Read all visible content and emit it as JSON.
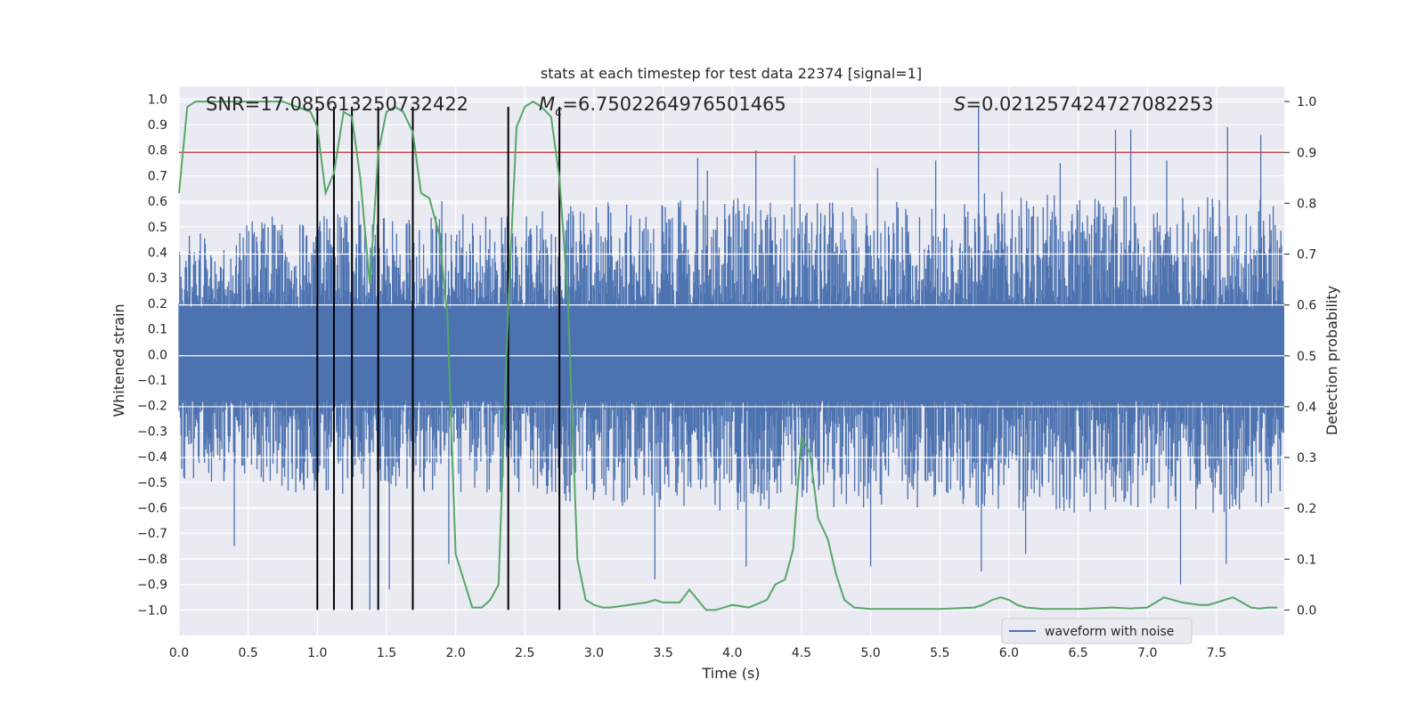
{
  "chart_data": {
    "type": "line",
    "title": "stats at each timestep for test data 22374 [signal=1]",
    "xlabel": "Time (s)",
    "ylabel_left": "Whitened strain",
    "ylabel_right": "Detection probability",
    "xlim": [
      0.0,
      7.99
    ],
    "ylim_left": [
      -1.1,
      1.05
    ],
    "ylim_right": [
      -0.05,
      1.03
    ],
    "x_ticks": [
      "0.0",
      "0.5",
      "1.0",
      "1.5",
      "2.0",
      "2.5",
      "3.0",
      "3.5",
      "4.0",
      "4.5",
      "5.0",
      "5.5",
      "6.0",
      "6.5",
      "7.0",
      "7.5"
    ],
    "y_ticks_left": [
      "1.0",
      "0.9",
      "0.8",
      "0.7",
      "0.6",
      "0.5",
      "0.4",
      "0.3",
      "0.2",
      "0.1",
      "0.0",
      "-0.1",
      "-0.2",
      "-0.3",
      "-0.4",
      "-0.5",
      "-0.6",
      "-0.7",
      "-0.8",
      "-0.9",
      "-1.0"
    ],
    "y_ticks_right": [
      "1.0",
      "0.9",
      "0.8",
      "0.7",
      "0.6",
      "0.5",
      "0.4",
      "0.3",
      "0.2",
      "0.1",
      "0.0"
    ],
    "grid": true,
    "annotations": {
      "snr": "SNR=17.085613250732422",
      "mc_symbol": "M",
      "mc_sub": "c",
      "mc_value": "=6.7502264976501465",
      "s_symbol": "S",
      "s_value": "=0.021257424727082253"
    },
    "threshold_right": 0.9,
    "vertical_lines_x": [
      1.0,
      1.12,
      1.25,
      1.44,
      1.69,
      2.38,
      2.75
    ],
    "vertical_lines_range_left": [
      -1.0,
      0.97
    ],
    "series": [
      {
        "name": "waveform with noise",
        "axis": "left",
        "kind": "noise-strain",
        "color": "#4c72b0",
        "envelope_x": [
          0.0,
          0.5,
          1.0,
          1.5,
          2.0,
          2.5,
          3.0,
          3.5,
          4.0,
          4.5,
          5.0,
          5.5,
          6.0,
          6.5,
          7.0,
          7.5,
          7.99
        ],
        "envelope_upper": [
          0.45,
          0.55,
          0.55,
          0.55,
          0.55,
          0.55,
          0.6,
          0.6,
          0.62,
          0.6,
          0.6,
          0.6,
          0.65,
          0.62,
          0.62,
          0.62,
          0.6
        ],
        "envelope_lower": [
          -0.5,
          -0.52,
          -0.55,
          -0.55,
          -0.55,
          -0.55,
          -0.6,
          -0.6,
          -0.62,
          -0.6,
          -0.6,
          -0.6,
          -0.62,
          -0.62,
          -0.6,
          -0.62,
          -0.6
        ],
        "peaks": [
          {
            "x": 1.3,
            "y": 0.6
          },
          {
            "x": 1.9,
            "y": 0.6
          },
          {
            "x": 3.75,
            "y": 0.77
          },
          {
            "x": 4.17,
            "y": 0.8
          },
          {
            "x": 4.45,
            "y": 0.78
          },
          {
            "x": 5.47,
            "y": 0.76
          },
          {
            "x": 5.78,
            "y": 0.97
          },
          {
            "x": 6.37,
            "y": 0.75
          },
          {
            "x": 6.77,
            "y": 0.88
          },
          {
            "x": 6.88,
            "y": 0.88
          },
          {
            "x": 7.14,
            "y": 0.76
          },
          {
            "x": 7.58,
            "y": 0.89
          },
          {
            "x": 7.82,
            "y": 0.86
          },
          {
            "x": 3.82,
            "y": 0.72
          },
          {
            "x": 5.05,
            "y": 0.73
          }
        ],
        "troughs": [
          {
            "x": 0.4,
            "y": -0.75
          },
          {
            "x": 1.38,
            "y": -1.0
          },
          {
            "x": 1.52,
            "y": -0.92
          },
          {
            "x": 1.95,
            "y": -0.82
          },
          {
            "x": 3.44,
            "y": -0.88
          },
          {
            "x": 4.1,
            "y": -0.83
          },
          {
            "x": 5.0,
            "y": -0.83
          },
          {
            "x": 5.8,
            "y": -0.85
          },
          {
            "x": 7.24,
            "y": -0.9
          },
          {
            "x": 6.12,
            "y": -0.78
          },
          {
            "x": 7.57,
            "y": -0.82
          }
        ]
      },
      {
        "name": "",
        "axis": "right",
        "kind": "line",
        "color": "#55a868",
        "x": [
          0.0,
          0.06,
          0.12,
          0.25,
          0.4,
          0.6,
          0.75,
          0.85,
          0.95,
          1.0,
          1.06,
          1.12,
          1.19,
          1.25,
          1.31,
          1.38,
          1.44,
          1.5,
          1.56,
          1.62,
          1.69,
          1.75,
          1.81,
          1.88,
          1.94,
          2.0,
          2.12,
          2.19,
          2.25,
          2.31,
          2.38,
          2.44,
          2.5,
          2.56,
          2.62,
          2.69,
          2.75,
          2.81,
          2.88,
          2.94,
          3.0,
          3.06,
          3.12,
          3.25,
          3.38,
          3.44,
          3.5,
          3.62,
          3.69,
          3.75,
          3.81,
          3.88,
          4.0,
          4.12,
          4.25,
          4.31,
          4.38,
          4.44,
          4.5,
          4.56,
          4.62,
          4.69,
          4.75,
          4.81,
          4.88,
          5.0,
          5.25,
          5.5,
          5.75,
          5.81,
          5.88,
          5.94,
          6.0,
          6.06,
          6.12,
          6.25,
          6.38,
          6.5,
          6.75,
          6.88,
          7.0,
          7.06,
          7.12,
          7.25,
          7.38,
          7.44,
          7.5,
          7.56,
          7.62,
          7.75,
          7.81,
          7.88,
          7.94
        ],
        "y": [
          0.82,
          0.99,
          1.0,
          1.0,
          1.0,
          1.0,
          1.0,
          0.99,
          0.98,
          0.95,
          0.82,
          0.86,
          0.98,
          0.97,
          0.85,
          0.64,
          0.9,
          0.98,
          0.99,
          0.98,
          0.94,
          0.82,
          0.81,
          0.74,
          0.58,
          0.11,
          0.005,
          0.005,
          0.02,
          0.05,
          0.6,
          0.95,
          0.99,
          1.0,
          0.99,
          0.97,
          0.85,
          0.62,
          0.1,
          0.02,
          0.01,
          0.005,
          0.005,
          0.01,
          0.015,
          0.02,
          0.015,
          0.015,
          0.04,
          0.02,
          0.0,
          0.0,
          0.01,
          0.005,
          0.02,
          0.05,
          0.06,
          0.12,
          0.34,
          0.31,
          0.18,
          0.14,
          0.07,
          0.02,
          0.005,
          0.002,
          0.002,
          0.002,
          0.005,
          0.01,
          0.02,
          0.025,
          0.02,
          0.01,
          0.005,
          0.002,
          0.002,
          0.002,
          0.005,
          0.003,
          0.005,
          0.015,
          0.025,
          0.015,
          0.01,
          0.01,
          0.015,
          0.02,
          0.025,
          0.005,
          0.003,
          0.005,
          0.005
        ]
      }
    ],
    "legend": {
      "position": "lower-right",
      "entries": [
        "waveform with noise"
      ]
    },
    "colors": {
      "plot_background": "#eaeaf2",
      "grid": "#ffffff",
      "strain": "#4c72b0",
      "probability": "#55a868",
      "threshold": "#c44e52",
      "vlines": "#000000"
    }
  }
}
